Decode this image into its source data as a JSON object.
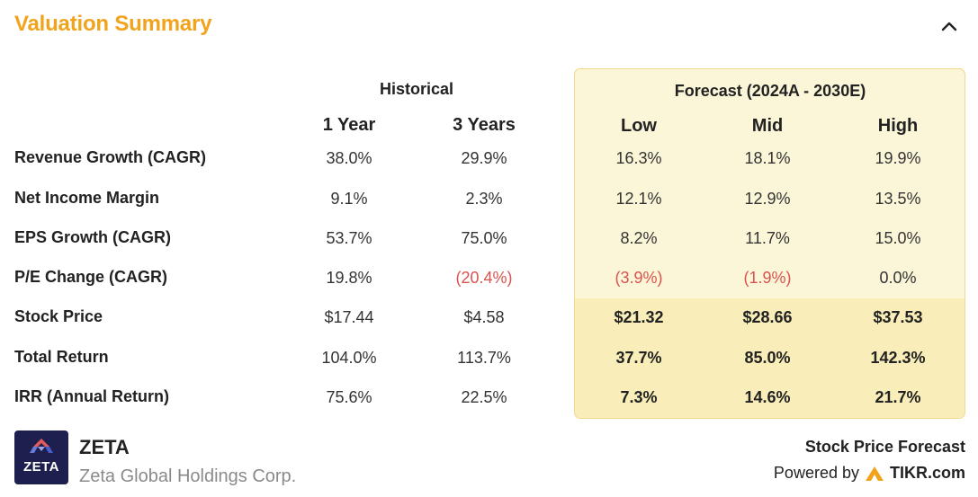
{
  "title": "Valuation Summary",
  "colors": {
    "accent": "#f2a31c",
    "negative": "#d9534f",
    "forecast_bg": "#fcf6d9",
    "forecast_border": "#f0d98a",
    "logo_bg": "#1d1f4e"
  },
  "icons": {
    "collapse": "chevron-up-icon",
    "logo": "zeta-logo-icon",
    "tikr": "tikr-logo-icon"
  },
  "headers": {
    "historical": "Historical",
    "forecast": "Forecast (2024A - 2030E)",
    "columns": [
      "1 Year",
      "3 Years",
      "Low",
      "Mid",
      "High"
    ]
  },
  "rows": [
    {
      "label": "Revenue Growth (CAGR)",
      "values": [
        "38.0%",
        "29.9%",
        "16.3%",
        "18.1%",
        "19.9%"
      ]
    },
    {
      "label": "Net Income Margin",
      "values": [
        "9.1%",
        "2.3%",
        "12.1%",
        "12.9%",
        "13.5%"
      ]
    },
    {
      "label": "EPS Growth (CAGR)",
      "values": [
        "53.7%",
        "75.0%",
        "8.2%",
        "11.7%",
        "15.0%"
      ]
    },
    {
      "label": "P/E Change (CAGR)",
      "values": [
        "19.8%",
        "(20.4%)",
        "(3.9%)",
        "(1.9%)",
        "0.0%"
      ]
    },
    {
      "label": "Stock Price",
      "values": [
        "$17.44",
        "$4.58",
        "$21.32",
        "$28.66",
        "$37.53"
      ]
    },
    {
      "label": "Total Return",
      "values": [
        "104.0%",
        "113.7%",
        "37.7%",
        "85.0%",
        "142.3%"
      ]
    },
    {
      "label": "IRR (Annual Return)",
      "values": [
        "75.6%",
        "22.5%",
        "7.3%",
        "14.6%",
        "21.7%"
      ]
    }
  ],
  "company": {
    "logo_text": "ZETA",
    "ticker": "ZETA",
    "name": "Zeta Global Holdings Corp."
  },
  "footer": {
    "forecast_label": "Stock Price Forecast",
    "powered_by": "Powered by",
    "brand": "TIKR.com"
  }
}
